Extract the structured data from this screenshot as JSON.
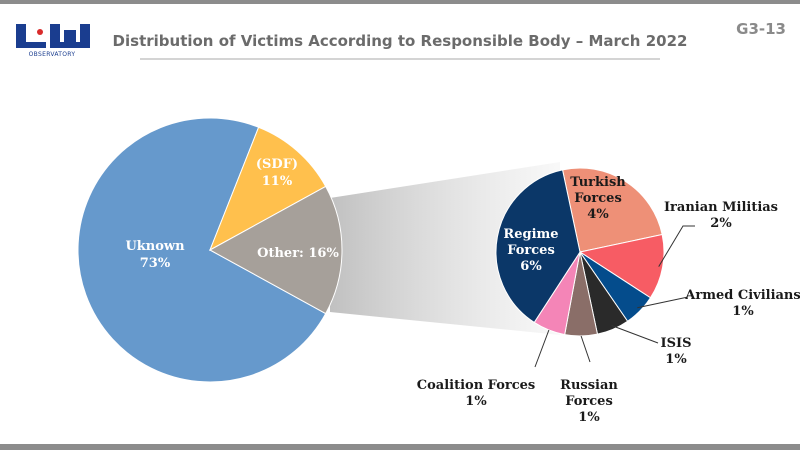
{
  "header": {
    "title": "Distribution of Victims According to Responsible Body – March 2022",
    "code": "G3-13",
    "logo_text": "OBSERVATORY"
  },
  "chart_data": [
    {
      "type": "pie",
      "slices": [
        {
          "label": "Uknown",
          "value": 73,
          "value_label": "73%",
          "color": "#6699CC"
        },
        {
          "label": "(SDF)",
          "value": 11,
          "value_label": "11%",
          "color": "#FFC04D"
        },
        {
          "label": "Other: 16%",
          "value": 16,
          "value_label": "",
          "color": "#A6A09A"
        }
      ]
    },
    {
      "type": "pie",
      "slices": [
        {
          "label": "Turkish Forces",
          "value": 4,
          "value_label": "4%",
          "color": "#EE9077"
        },
        {
          "label": "Iranian Militias",
          "value": 2,
          "value_label": "2%",
          "color": "#F75C64"
        },
        {
          "label": "Armed Civilians",
          "value": 1,
          "value_label": "1%",
          "color": "#044C8C"
        },
        {
          "label": "ISIS",
          "value": 1,
          "value_label": "1%",
          "color": "#2A2A2A"
        },
        {
          "label": "Russian Forces",
          "value": 1,
          "value_label": "1%",
          "color": "#8A6E68"
        },
        {
          "label": "Coalition Forces",
          "value": 1,
          "value_label": "1%",
          "color": "#F485B7"
        },
        {
          "label": "Regime Forces",
          "value": 6,
          "value_label": "6%",
          "color": "#0B3768"
        }
      ]
    }
  ]
}
